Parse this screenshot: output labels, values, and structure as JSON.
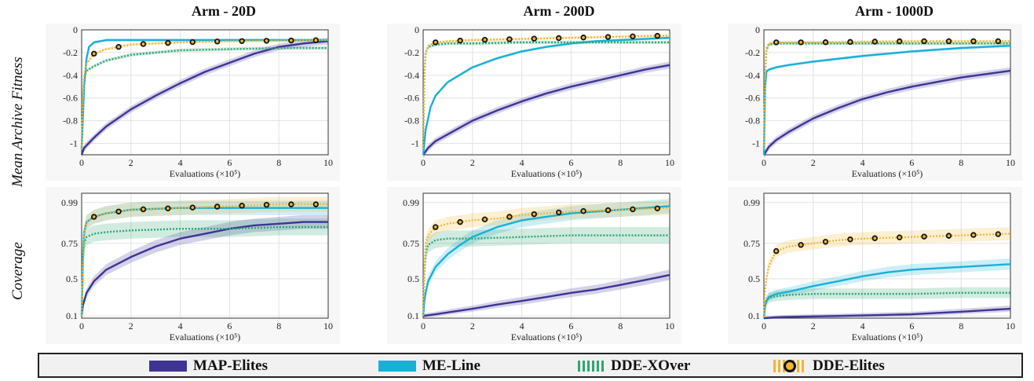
{
  "column_titles": [
    "Arm - 20D",
    "Arm - 200D",
    "Arm - 1000D"
  ],
  "row_labels": [
    "Mean Archive Fitness",
    "Coverage"
  ],
  "colors": {
    "MAP-Elites": "#3d3494",
    "ME-Line": "#1ab0d6",
    "DDE-XOver": "#2da673",
    "DDE-Elites": "#f2b531"
  },
  "legend": {
    "items": [
      {
        "name": "MAP-Elites",
        "symbol": "solid-bar"
      },
      {
        "name": "ME-Line",
        "symbol": "solid-bar"
      },
      {
        "name": "DDE-XOver",
        "symbol": "dotted-bar"
      },
      {
        "name": "DDE-Elites",
        "symbol": "dotted-bar-with-circle"
      }
    ]
  },
  "chart_data": [
    {
      "type": "line",
      "title": "Arm - 20D",
      "ylabel": "Mean Archive Fitness",
      "xlabel": "Evaluations (×10⁵)",
      "xlim": [
        0,
        10
      ],
      "ylim": [
        -1.1,
        0
      ],
      "xticks": [
        0,
        2,
        4,
        6,
        8,
        10
      ],
      "yticks": [
        0,
        -0.2,
        -0.4,
        -0.6,
        -0.8,
        -1
      ],
      "ytick_labels": [
        "0",
        "-0.2",
        "-0.4",
        "-0.6",
        "-0.8",
        "-1"
      ],
      "grid": true,
      "series": [
        {
          "name": "MAP-Elites",
          "x": [
            0,
            0.1,
            0.5,
            1,
            2,
            3,
            4,
            5,
            6,
            7,
            8,
            9,
            10
          ],
          "y": [
            -1.1,
            -1.04,
            -0.95,
            -0.85,
            -0.7,
            -0.58,
            -0.47,
            -0.37,
            -0.29,
            -0.21,
            -0.15,
            -0.12,
            -0.1
          ]
        },
        {
          "name": "ME-Line",
          "x": [
            0,
            0.1,
            0.2,
            0.3,
            0.5,
            1,
            2,
            4,
            6,
            8,
            10
          ],
          "y": [
            -1.05,
            -0.5,
            -0.25,
            -0.15,
            -0.11,
            -0.09,
            -0.09,
            -0.09,
            -0.09,
            -0.09,
            -0.09
          ]
        },
        {
          "name": "DDE-XOver",
          "x": [
            0,
            0.05,
            0.1,
            0.2,
            0.5,
            1,
            2,
            4,
            6,
            8,
            10
          ],
          "y": [
            -1.05,
            -0.6,
            -0.42,
            -0.36,
            -0.32,
            -0.27,
            -0.22,
            -0.18,
            -0.17,
            -0.16,
            -0.16
          ]
        },
        {
          "name": "DDE-Elites",
          "x": [
            0,
            0.05,
            0.1,
            0.2,
            0.5,
            1,
            2,
            4,
            6,
            8,
            10
          ],
          "y": [
            -1.05,
            -0.6,
            -0.4,
            -0.3,
            -0.21,
            -0.17,
            -0.13,
            -0.11,
            -0.1,
            -0.095,
            -0.09
          ]
        }
      ]
    },
    {
      "type": "line",
      "title": "Arm - 200D",
      "ylabel": "",
      "xlabel": "Evaluations (×10⁵)",
      "xlim": [
        0,
        10
      ],
      "ylim": [
        -1.1,
        0
      ],
      "xticks": [
        0,
        2,
        4,
        6,
        8,
        10
      ],
      "yticks": [
        0,
        -0.2,
        -0.4,
        -0.6,
        -0.8,
        -1
      ],
      "ytick_labels": [
        "0",
        "-0.2",
        "-0.4",
        "-0.6",
        "-0.8",
        "-1"
      ],
      "grid": true,
      "series": [
        {
          "name": "MAP-Elites",
          "x": [
            0,
            0.2,
            0.5,
            1,
            2,
            3,
            4,
            5,
            6,
            7,
            8,
            9,
            10
          ],
          "y": [
            -1.1,
            -1.04,
            -0.98,
            -0.92,
            -0.8,
            -0.71,
            -0.63,
            -0.56,
            -0.5,
            -0.45,
            -0.4,
            -0.35,
            -0.31
          ]
        },
        {
          "name": "ME-Line",
          "x": [
            0,
            0.1,
            0.3,
            0.5,
            1,
            2,
            3,
            4,
            5,
            6,
            7,
            8,
            9,
            10
          ],
          "y": [
            -1.1,
            -0.88,
            -0.68,
            -0.58,
            -0.46,
            -0.33,
            -0.25,
            -0.19,
            -0.15,
            -0.12,
            -0.1,
            -0.09,
            -0.08,
            -0.07
          ]
        },
        {
          "name": "DDE-XOver",
          "x": [
            0,
            0.05,
            0.1,
            0.2,
            0.5,
            1,
            2,
            4,
            6,
            8,
            10
          ],
          "y": [
            -1.05,
            -0.4,
            -0.2,
            -0.15,
            -0.13,
            -0.12,
            -0.12,
            -0.11,
            -0.11,
            -0.11,
            -0.11
          ]
        },
        {
          "name": "DDE-Elites",
          "x": [
            0,
            0.05,
            0.1,
            0.2,
            0.5,
            1,
            2,
            4,
            6,
            8,
            10
          ],
          "y": [
            -1.05,
            -0.4,
            -0.2,
            -0.14,
            -0.11,
            -0.1,
            -0.09,
            -0.08,
            -0.07,
            -0.06,
            -0.05
          ]
        }
      ]
    },
    {
      "type": "line",
      "title": "Arm - 1000D",
      "ylabel": "",
      "xlabel": "Evaluations (×10⁵)",
      "xlim": [
        0,
        10
      ],
      "ylim": [
        -1.1,
        0
      ],
      "xticks": [
        0,
        2,
        4,
        6,
        8,
        10
      ],
      "yticks": [
        0,
        -0.2,
        -0.4,
        -0.6,
        -0.8,
        -1
      ],
      "ytick_labels": [
        "0",
        "-0.2",
        "-0.4",
        "-0.6",
        "-0.8",
        "-1"
      ],
      "grid": true,
      "series": [
        {
          "name": "MAP-Elites",
          "x": [
            0,
            0.2,
            0.5,
            1,
            2,
            3,
            4,
            5,
            6,
            7,
            8,
            9,
            10
          ],
          "y": [
            -1.1,
            -1.03,
            -0.97,
            -0.9,
            -0.78,
            -0.69,
            -0.61,
            -0.55,
            -0.5,
            -0.46,
            -0.42,
            -0.39,
            -0.36
          ]
        },
        {
          "name": "ME-Line",
          "x": [
            0,
            0.05,
            0.1,
            0.2,
            0.5,
            1,
            2,
            4,
            6,
            8,
            10
          ],
          "y": [
            -1.1,
            -0.5,
            -0.37,
            -0.35,
            -0.33,
            -0.31,
            -0.28,
            -0.23,
            -0.19,
            -0.16,
            -0.14
          ]
        },
        {
          "name": "DDE-XOver",
          "x": [
            0,
            0.05,
            0.1,
            0.2,
            0.5,
            1,
            2,
            4,
            6,
            8,
            10
          ],
          "y": [
            -1.05,
            -0.4,
            -0.18,
            -0.13,
            -0.12,
            -0.12,
            -0.12,
            -0.12,
            -0.12,
            -0.12,
            -0.12
          ]
        },
        {
          "name": "DDE-Elites",
          "x": [
            0,
            0.05,
            0.1,
            0.2,
            0.5,
            1,
            2,
            4,
            6,
            8,
            10
          ],
          "y": [
            -1.05,
            -0.4,
            -0.16,
            -0.12,
            -0.11,
            -0.11,
            -0.11,
            -0.105,
            -0.1,
            -0.1,
            -0.1
          ]
        }
      ]
    },
    {
      "type": "line",
      "title": "",
      "ylabel": "Coverage",
      "xlabel": "Evaluations (×10⁵)",
      "xlim": [
        0,
        10
      ],
      "ylim": [
        0.05,
        1.04
      ],
      "xticks": [
        0,
        2,
        4,
        6,
        8,
        10
      ],
      "yticks": [
        0.1,
        0.5,
        0.75,
        0.99
      ],
      "ytick_labels": [
        "0.1",
        "0.5",
        "0.75",
        "0.99"
      ],
      "grid": true,
      "series": [
        {
          "name": "MAP-Elites",
          "x": [
            0,
            0.05,
            0.2,
            0.5,
            1,
            2,
            3,
            4,
            5,
            6,
            7,
            8,
            9,
            10
          ],
          "y": [
            0.1,
            0.25,
            0.38,
            0.48,
            0.57,
            0.66,
            0.73,
            0.78,
            0.81,
            0.84,
            0.86,
            0.87,
            0.88,
            0.88
          ]
        },
        {
          "name": "ME-Line",
          "x": [
            0,
            0.05,
            0.1,
            0.2,
            0.5,
            1,
            2,
            4,
            6,
            8,
            10
          ],
          "y": [
            0.1,
            0.65,
            0.82,
            0.88,
            0.91,
            0.93,
            0.95,
            0.96,
            0.96,
            0.96,
            0.96
          ]
        },
        {
          "name": "DDE-XOver",
          "x": [
            0,
            0.05,
            0.1,
            0.2,
            0.5,
            1,
            2,
            4,
            6,
            8,
            10
          ],
          "y": [
            0.1,
            0.6,
            0.75,
            0.79,
            0.81,
            0.82,
            0.83,
            0.84,
            0.84,
            0.85,
            0.85
          ]
        },
        {
          "name": "DDE-Elites",
          "x": [
            0,
            0.05,
            0.1,
            0.2,
            0.5,
            1,
            2,
            4,
            6,
            8,
            10
          ],
          "y": [
            0.1,
            0.6,
            0.82,
            0.88,
            0.91,
            0.93,
            0.95,
            0.96,
            0.97,
            0.98,
            0.98
          ]
        }
      ]
    },
    {
      "type": "line",
      "title": "",
      "ylabel": "",
      "xlabel": "Evaluations (×10⁵)",
      "xlim": [
        0,
        10
      ],
      "ylim": [
        0.05,
        1.04
      ],
      "xticks": [
        0,
        2,
        4,
        6,
        8,
        10
      ],
      "yticks": [
        0.1,
        0.5,
        0.75,
        0.99
      ],
      "ytick_labels": [
        "0.1",
        "0.5",
        "0.75",
        "0.99"
      ],
      "grid": true,
      "series": [
        {
          "name": "MAP-Elites",
          "x": [
            0,
            0.5,
            1,
            2,
            3,
            4,
            5,
            6,
            7,
            8,
            9,
            10
          ],
          "y": [
            0.1,
            0.13,
            0.16,
            0.21,
            0.26,
            0.3,
            0.34,
            0.38,
            0.41,
            0.45,
            0.49,
            0.53
          ]
        },
        {
          "name": "ME-Line",
          "x": [
            0,
            0.05,
            0.1,
            0.2,
            0.5,
            1,
            1.5,
            2,
            3,
            4,
            5,
            6,
            7,
            8,
            9,
            10
          ],
          "y": [
            0.1,
            0.3,
            0.38,
            0.48,
            0.59,
            0.68,
            0.74,
            0.79,
            0.85,
            0.89,
            0.91,
            0.93,
            0.94,
            0.95,
            0.96,
            0.97
          ]
        },
        {
          "name": "DDE-XOver",
          "x": [
            0,
            0.05,
            0.1,
            0.2,
            0.5,
            1,
            2,
            4,
            6,
            8,
            10
          ],
          "y": [
            0.1,
            0.55,
            0.68,
            0.74,
            0.77,
            0.78,
            0.78,
            0.79,
            0.8,
            0.8,
            0.8
          ]
        },
        {
          "name": "DDE-Elites",
          "x": [
            0,
            0.05,
            0.1,
            0.2,
            0.5,
            1,
            2,
            3,
            4,
            6,
            8,
            10
          ],
          "y": [
            0.1,
            0.6,
            0.75,
            0.8,
            0.85,
            0.87,
            0.89,
            0.9,
            0.92,
            0.94,
            0.95,
            0.96
          ]
        }
      ]
    },
    {
      "type": "line",
      "title": "",
      "ylabel": "",
      "xlabel": "Evaluations (×10⁵)",
      "xlim": [
        0,
        10
      ],
      "ylim": [
        0.05,
        1.04
      ],
      "xticks": [
        0,
        2,
        4,
        6,
        8,
        10
      ],
      "yticks": [
        0.1,
        0.5,
        0.75,
        0.99
      ],
      "ytick_labels": [
        "0.1",
        "0.5",
        "0.75",
        "0.99"
      ],
      "grid": true,
      "series": [
        {
          "name": "MAP-Elites",
          "x": [
            0,
            0.5,
            1,
            2,
            3,
            4,
            5,
            6,
            7,
            8,
            9,
            10
          ],
          "y": [
            0.05,
            0.07,
            0.08,
            0.09,
            0.1,
            0.11,
            0.12,
            0.13,
            0.15,
            0.17,
            0.19,
            0.21
          ]
        },
        {
          "name": "ME-Line",
          "x": [
            0,
            0.05,
            0.1,
            0.2,
            0.5,
            1,
            2,
            3,
            4,
            5,
            6,
            7,
            8,
            9,
            10
          ],
          "y": [
            0.07,
            0.25,
            0.3,
            0.34,
            0.37,
            0.39,
            0.44,
            0.48,
            0.52,
            0.55,
            0.57,
            0.58,
            0.59,
            0.6,
            0.61
          ]
        },
        {
          "name": "DDE-XOver",
          "x": [
            0,
            0.05,
            0.1,
            0.2,
            0.5,
            1,
            2,
            4,
            6,
            8,
            10
          ],
          "y": [
            0.07,
            0.25,
            0.3,
            0.33,
            0.35,
            0.36,
            0.37,
            0.37,
            0.37,
            0.38,
            0.38
          ]
        },
        {
          "name": "DDE-Elites",
          "x": [
            0,
            0.05,
            0.1,
            0.2,
            0.5,
            1,
            2,
            3,
            4,
            6,
            8,
            10
          ],
          "y": [
            0.07,
            0.4,
            0.5,
            0.6,
            0.7,
            0.73,
            0.75,
            0.77,
            0.78,
            0.79,
            0.8,
            0.81
          ]
        }
      ]
    }
  ]
}
